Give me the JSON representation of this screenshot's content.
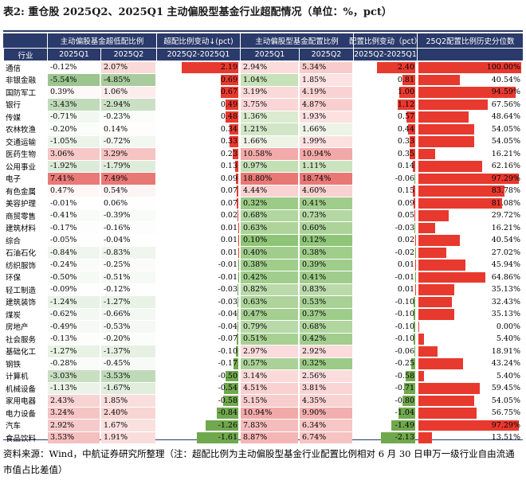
{
  "title": "表2: 重仓股 2025Q2、2025Q1 主动偏股型基金行业超配情况（单位：%，pct）",
  "headers": {
    "row1": [
      "主动偏股基金超低配比例",
      "超配比例变动↓(pct)",
      "主动偏股型基金配置比例",
      "配置比例变动（pct）",
      "25Q2配置比例历史分位数"
    ],
    "row2": [
      "行业",
      "2025Q1",
      "2025Q2",
      "2025Q2-2025Q1",
      "2025Q1",
      "2025Q2",
      "2025Q2-2025Q1"
    ]
  },
  "rows": [
    {
      "industry": "通信",
      "over_q1": "-0.12%",
      "over_q2": "2.07%",
      "over_chg": 2.19,
      "over_chg_text": "2.19",
      "alloc_q1": "2.94%",
      "alloc_q2": "5.34%",
      "alloc_chg": 2.4,
      "alloc_chg_text": "2.40",
      "pct": 100.0,
      "pct_text": "100.00%"
    },
    {
      "industry": "非银金融",
      "over_q1": "-5.54%",
      "over_q2": "-4.85%",
      "over_chg": 0.69,
      "over_chg_text": "0.69",
      "alloc_q1": "1.04%",
      "alloc_q2": "1.85%",
      "alloc_chg": 0.81,
      "alloc_chg_text": "0.81",
      "pct": 40.54,
      "pct_text": "40.54%"
    },
    {
      "industry": "国防军工",
      "over_q1": "0.39%",
      "over_q2": "1.06%",
      "over_chg": 0.67,
      "over_chg_text": "0.67",
      "alloc_q1": "3.19%",
      "alloc_q2": "4.19%",
      "alloc_chg": 1.0,
      "alloc_chg_text": "1.00",
      "pct": 94.59,
      "pct_text": "94.59%"
    },
    {
      "industry": "银行",
      "over_q1": "-3.43%",
      "over_q2": "-2.94%",
      "over_chg": 0.49,
      "over_chg_text": "0.49",
      "alloc_q1": "3.75%",
      "alloc_q2": "4.87%",
      "alloc_chg": 1.12,
      "alloc_chg_text": "1.12",
      "pct": 67.56,
      "pct_text": "67.56%"
    },
    {
      "industry": "传媒",
      "over_q1": "-0.71%",
      "over_q2": "-0.23%",
      "over_chg": 0.48,
      "over_chg_text": "0.48",
      "alloc_q1": "1.36%",
      "alloc_q2": "1.93%",
      "alloc_chg": 0.57,
      "alloc_chg_text": "0.57",
      "pct": 48.64,
      "pct_text": "48.64%"
    },
    {
      "industry": "农林牧渔",
      "over_q1": "-0.20%",
      "over_q2": "0.14%",
      "over_chg": 0.34,
      "over_chg_text": "0.34",
      "alloc_q1": "1.21%",
      "alloc_q2": "1.66%",
      "alloc_chg": 0.44,
      "alloc_chg_text": "0.44",
      "pct": 54.05,
      "pct_text": "54.05%"
    },
    {
      "industry": "交通运输",
      "over_q1": "-1.05%",
      "over_q2": "-0.72%",
      "over_chg": 0.33,
      "over_chg_text": "0.33",
      "alloc_q1": "1.66%",
      "alloc_q2": "1.99%",
      "alloc_chg": 0.33,
      "alloc_chg_text": "0.33",
      "pct": 54.05,
      "pct_text": "54.05%"
    },
    {
      "industry": "医药生物",
      "over_q1": "3.06%",
      "over_q2": "3.29%",
      "over_chg": 0.23,
      "over_chg_text": "0.23",
      "alloc_q1": "10.58%",
      "alloc_q2": "10.94%",
      "alloc_chg": 0.35,
      "alloc_chg_text": "0.35",
      "pct": 16.21,
      "pct_text": "16.21%"
    },
    {
      "industry": "公用事业",
      "over_q1": "-1.92%",
      "over_q2": "-1.79%",
      "over_chg": 0.13,
      "over_chg_text": "0.13",
      "alloc_q1": "0.97%",
      "alloc_q2": "1.11%",
      "alloc_chg": 0.14,
      "alloc_chg_text": "0.14",
      "pct": 62.16,
      "pct_text": "62.16%"
    },
    {
      "industry": "电子",
      "over_q1": "7.41%",
      "over_q2": "7.49%",
      "over_chg": 0.09,
      "over_chg_text": "0.09",
      "alloc_q1": "18.80%",
      "alloc_q2": "18.74%",
      "alloc_chg": -0.06,
      "alloc_chg_text": "-0.06",
      "pct": 97.29,
      "pct_text": "97.29%"
    },
    {
      "industry": "有色金属",
      "over_q1": "0.47%",
      "over_q2": "0.54%",
      "over_chg": 0.07,
      "over_chg_text": "0.07",
      "alloc_q1": "4.44%",
      "alloc_q2": "4.60%",
      "alloc_chg": 0.15,
      "alloc_chg_text": "0.15",
      "pct": 83.78,
      "pct_text": "83.78%"
    },
    {
      "industry": "美容护理",
      "over_q1": "-0.01%",
      "over_q2": "0.06%",
      "over_chg": 0.07,
      "over_chg_text": "0.07",
      "alloc_q1": "0.32%",
      "alloc_q2": "0.41%",
      "alloc_chg": 0.09,
      "alloc_chg_text": "0.09",
      "pct": 81.08,
      "pct_text": "81.08%"
    },
    {
      "industry": "商贸零售",
      "over_q1": "-0.41%",
      "over_q2": "-0.39%",
      "over_chg": 0.02,
      "over_chg_text": "0.02",
      "alloc_q1": "0.68%",
      "alloc_q2": "0.73%",
      "alloc_chg": 0.05,
      "alloc_chg_text": "0.05",
      "pct": 29.72,
      "pct_text": "29.72%"
    },
    {
      "industry": "建筑材料",
      "over_q1": "-0.17%",
      "over_q2": "-0.16%",
      "over_chg": 0.01,
      "over_chg_text": "0.01",
      "alloc_q1": "0.63%",
      "alloc_q2": "0.60%",
      "alloc_chg": -0.03,
      "alloc_chg_text": "-0.03",
      "pct": 16.21,
      "pct_text": "16.21%"
    },
    {
      "industry": "综合",
      "over_q1": "-0.05%",
      "over_q2": "-0.04%",
      "over_chg": 0.01,
      "over_chg_text": "0.01",
      "alloc_q1": "0.10%",
      "alloc_q2": "0.12%",
      "alloc_chg": 0.02,
      "alloc_chg_text": "0.02",
      "pct": 40.54,
      "pct_text": "40.54%"
    },
    {
      "industry": "石油石化",
      "over_q1": "-0.84%",
      "over_q2": "-0.83%",
      "over_chg": 0.01,
      "over_chg_text": "0.01",
      "alloc_q1": "0.40%",
      "alloc_q2": "0.38%",
      "alloc_chg": -0.02,
      "alloc_chg_text": "-0.02",
      "pct": 27.02,
      "pct_text": "27.02%"
    },
    {
      "industry": "纺织服饰",
      "over_q1": "-0.24%",
      "over_q2": "-0.25%",
      "over_chg": -0.01,
      "over_chg_text": "-0.01",
      "alloc_q1": "0.38%",
      "alloc_q2": "0.39%",
      "alloc_chg": 0.01,
      "alloc_chg_text": "0.01",
      "pct": 45.94,
      "pct_text": "45.94%"
    },
    {
      "industry": "环保",
      "over_q1": "-0.50%",
      "over_q2": "-0.51%",
      "over_chg": -0.01,
      "over_chg_text": "-0.01",
      "alloc_q1": "0.42%",
      "alloc_q2": "0.41%",
      "alloc_chg": -0.01,
      "alloc_chg_text": "-0.01",
      "pct": 64.86,
      "pct_text": "64.86%"
    },
    {
      "industry": "轻工制造",
      "over_q1": "-0.09%",
      "over_q2": "-0.12%",
      "over_chg": -0.03,
      "over_chg_text": "-0.03",
      "alloc_q1": "0.82%",
      "alloc_q2": "0.83%",
      "alloc_chg": 0.01,
      "alloc_chg_text": "0.01",
      "pct": 35.13,
      "pct_text": "35.13%"
    },
    {
      "industry": "建筑装饰",
      "over_q1": "-1.24%",
      "over_q2": "-1.27%",
      "over_chg": -0.03,
      "over_chg_text": "-0.03",
      "alloc_q1": "0.63%",
      "alloc_q2": "0.53%",
      "alloc_chg": -0.1,
      "alloc_chg_text": "-0.10",
      "pct": 32.43,
      "pct_text": "32.43%"
    },
    {
      "industry": "煤炭",
      "over_q1": "-0.62%",
      "over_q2": "-0.66%",
      "over_chg": -0.04,
      "over_chg_text": "-0.04",
      "alloc_q1": "0.47%",
      "alloc_q2": "0.37%",
      "alloc_chg": -0.1,
      "alloc_chg_text": "-0.10",
      "pct": 35.13,
      "pct_text": "35.13%"
    },
    {
      "industry": "房地产",
      "over_q1": "-0.49%",
      "over_q2": "-0.53%",
      "over_chg": -0.04,
      "over_chg_text": "-0.04",
      "alloc_q1": "0.79%",
      "alloc_q2": "0.68%",
      "alloc_chg": -0.1,
      "alloc_chg_text": "-0.10",
      "pct": 0.0,
      "pct_text": "0.00%"
    },
    {
      "industry": "社会服务",
      "over_q1": "-0.13%",
      "over_q2": "-0.20%",
      "over_chg": -0.07,
      "over_chg_text": "-0.07",
      "alloc_q1": "0.51%",
      "alloc_q2": "0.42%",
      "alloc_chg": -0.1,
      "alloc_chg_text": "-0.10",
      "pct": 5.4,
      "pct_text": "5.40%"
    },
    {
      "industry": "基础化工",
      "over_q1": "-1.27%",
      "over_q2": "-1.37%",
      "over_chg": -0.1,
      "over_chg_text": "-0.10",
      "alloc_q1": "2.97%",
      "alloc_q2": "2.92%",
      "alloc_chg": -0.06,
      "alloc_chg_text": "-0.06",
      "pct": 18.91,
      "pct_text": "18.91%"
    },
    {
      "industry": "钢铁",
      "over_q1": "-0.28%",
      "over_q2": "-0.45%",
      "over_chg": -0.17,
      "over_chg_text": "-0.17",
      "alloc_q1": "0.57%",
      "alloc_q2": "0.32%",
      "alloc_chg": -0.25,
      "alloc_chg_text": "-0.25",
      "pct": 43.24,
      "pct_text": "43.24%"
    },
    {
      "industry": "计算机",
      "over_q1": "-3.03%",
      "over_q2": "-3.53%",
      "over_chg": -0.5,
      "over_chg_text": "-0.50",
      "alloc_q1": "3.14%",
      "alloc_q2": "2.56%",
      "alloc_chg": -0.58,
      "alloc_chg_text": "-0.58",
      "pct": 5.4,
      "pct_text": "5.40%"
    },
    {
      "industry": "机械设备",
      "over_q1": "-1.13%",
      "over_q2": "-1.67%",
      "over_chg": -0.54,
      "over_chg_text": "-0.54",
      "alloc_q1": "4.51%",
      "alloc_q2": "3.81%",
      "alloc_chg": -0.71,
      "alloc_chg_text": "-0.71",
      "pct": 59.45,
      "pct_text": "59.45%"
    },
    {
      "industry": "家用电器",
      "over_q1": "2.43%",
      "over_q2": "1.85%",
      "over_chg": -0.58,
      "over_chg_text": "-0.58",
      "alloc_q1": "5.15%",
      "alloc_q2": "4.35%",
      "alloc_chg": -0.8,
      "alloc_chg_text": "-0.80",
      "pct": 54.05,
      "pct_text": "54.05%"
    },
    {
      "industry": "电力设备",
      "over_q1": "3.24%",
      "over_q2": "2.40%",
      "over_chg": -0.84,
      "over_chg_text": "-0.84",
      "alloc_q1": "10.94%",
      "alloc_q2": "9.90%",
      "alloc_chg": -1.04,
      "alloc_chg_text": "-1.04",
      "pct": 56.75,
      "pct_text": "56.75%"
    },
    {
      "industry": "汽车",
      "over_q1": "2.92%",
      "over_q2": "1.67%",
      "over_chg": -1.26,
      "over_chg_text": "-1.26",
      "alloc_q1": "7.83%",
      "alloc_q2": "6.34%",
      "alloc_chg": -1.49,
      "alloc_chg_text": "-1.49",
      "pct": 97.29,
      "pct_text": "97.29%"
    },
    {
      "industry": "食品饮料",
      "over_q1": "3.53%",
      "over_q2": "1.91%",
      "over_chg": -1.61,
      "over_chg_text": "-1.61",
      "alloc_q1": "8.87%",
      "alloc_q2": "6.74%",
      "alloc_chg": -2.13,
      "alloc_chg_text": "-2.13",
      "pct": 13.51,
      "pct_text": "13.51%"
    }
  ],
  "colors": {
    "header": "#2a3a6a",
    "red": "#e8392f",
    "green": "#70a84e"
  },
  "source": "资料来源：Wind，中航证券研究所整理（注：超配比例为主动偏股型基金行业配置比例相对 6 月 30 日申万一级行业自由流通市值占比差值）"
}
